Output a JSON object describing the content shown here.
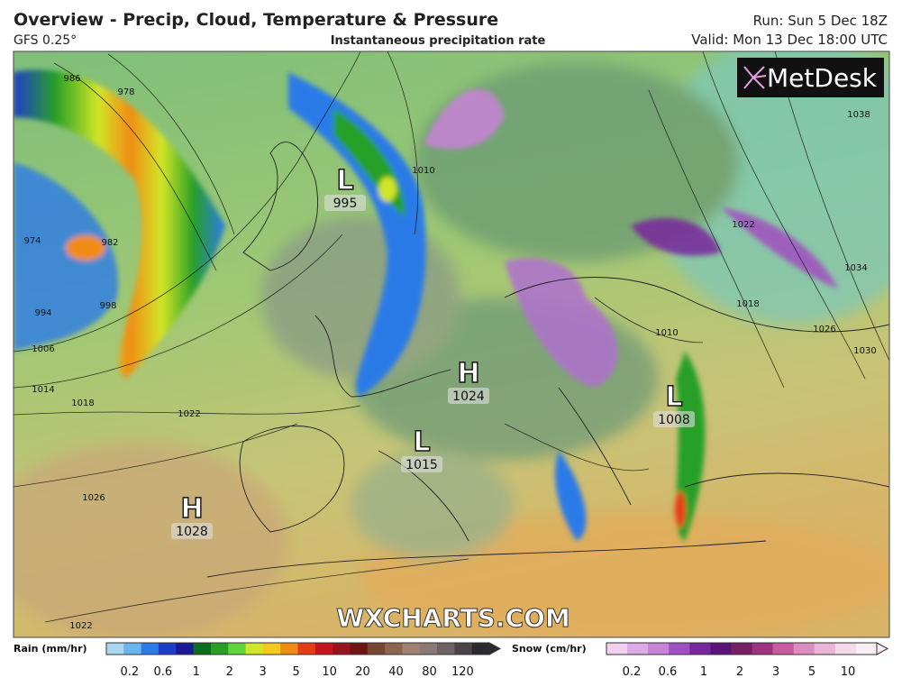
{
  "header": {
    "title": "Overview - Precip, Cloud, Temperature & Pressure",
    "model": "GFS 0.25°",
    "subtitle": "Instantaneous precipitation rate",
    "run": "Run: Sun 5 Dec 18Z",
    "valid": "Valid: Mon 13 Dec 18:00 UTC"
  },
  "logo": "MetDesk",
  "watermark": "WXCHARTS.COM",
  "pressure_centers": [
    {
      "label": "L",
      "value": 995
    },
    {
      "label": "H",
      "value": 1024
    },
    {
      "label": "L",
      "value": 1015
    },
    {
      "label": "L",
      "value": 1008
    },
    {
      "label": "H",
      "value": 1028
    }
  ],
  "isobar_labels": [
    986,
    978,
    974,
    982,
    994,
    998,
    1006,
    1014,
    1018,
    1022,
    1026,
    1022,
    1010,
    1010,
    1022,
    1034,
    1030,
    1026,
    1038,
    1018
  ],
  "legend": {
    "rain": {
      "label": "Rain (mm/hr)",
      "ticks": [
        0.2,
        0.6,
        1,
        2,
        3,
        5,
        10,
        20,
        40,
        80,
        120
      ],
      "colors": [
        "#a8d8f0",
        "#6ab4f0",
        "#2a7ae8",
        "#1e3cc8",
        "#1a1a96",
        "#0a6e1e",
        "#28a028",
        "#64d23c",
        "#d2e628",
        "#f5c81e",
        "#f08c14",
        "#e63c14",
        "#c8141e",
        "#96141e",
        "#6e1414",
        "#784632",
        "#8c6450",
        "#a08270",
        "#8c7a78",
        "#6e6464",
        "#4a4448",
        "#2a2a30"
      ]
    },
    "snow": {
      "label": "Snow (cm/hr)",
      "ticks": [
        0.2,
        0.6,
        1,
        2,
        3,
        5,
        10
      ],
      "colors": [
        "#f0d2f0",
        "#dcaae6",
        "#c882d8",
        "#a050c0",
        "#78289c",
        "#5a1478",
        "#781e64",
        "#a03282",
        "#c85aa0",
        "#dc8cbe",
        "#ebb4d6",
        "#f5d8ea",
        "#faeef5"
      ]
    }
  }
}
